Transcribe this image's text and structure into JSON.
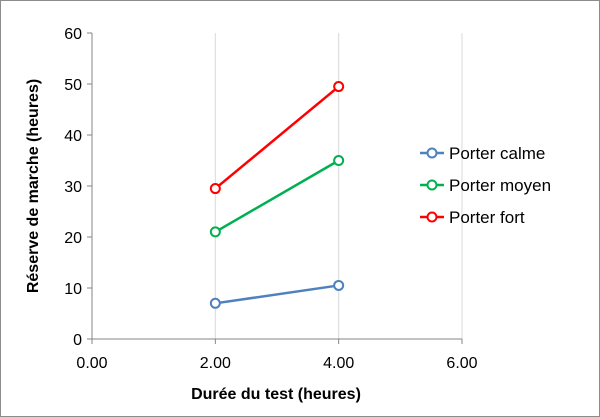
{
  "chart_data": {
    "type": "line",
    "title": "",
    "xlabel": "Durée du test (heures)",
    "ylabel": "Réserve de marche (heures)",
    "xlim": [
      0,
      6
    ],
    "ylim": [
      0,
      60
    ],
    "x_ticks": [
      "0.00",
      "2.00",
      "4.00",
      "6.00"
    ],
    "y_ticks": [
      "0",
      "10",
      "20",
      "30",
      "40",
      "50",
      "60"
    ],
    "grid": "vertical gridlines",
    "legend_position": "right",
    "series": [
      {
        "name": "Porter calme",
        "color": "#4f81bd",
        "x": [
          2,
          4
        ],
        "y": [
          7,
          10.5
        ]
      },
      {
        "name": "Porter moyen",
        "color": "#00b050",
        "x": [
          2,
          4
        ],
        "y": [
          21,
          35
        ]
      },
      {
        "name": "Porter fort",
        "color": "#ff0000",
        "x": [
          2,
          4
        ],
        "y": [
          29.5,
          49.5
        ]
      }
    ]
  }
}
